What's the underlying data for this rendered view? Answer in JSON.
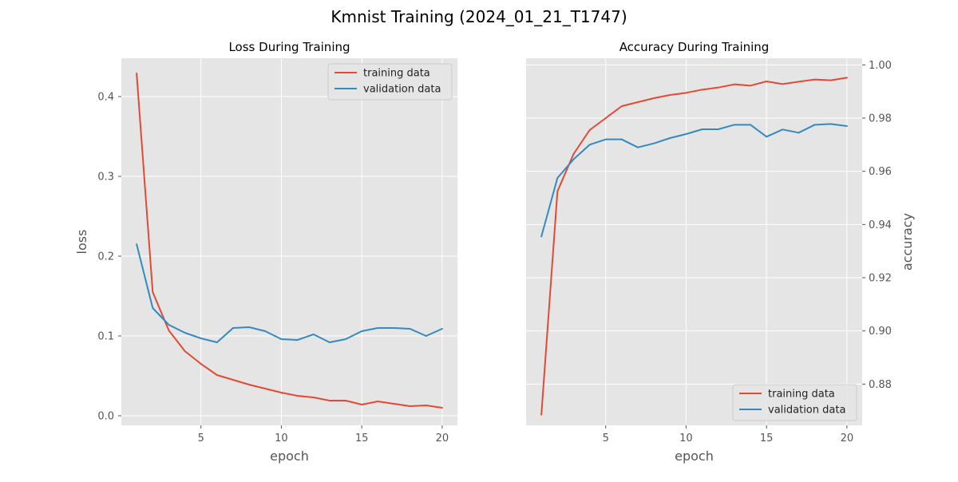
{
  "figure": {
    "suptitle": "Kmnist Training (2024_01_21_T1747)"
  },
  "colors": {
    "background": "#ffffff",
    "axes_bg": "#e5e5e5",
    "grid": "#ffffff",
    "text": "#555555",
    "title": "#000000",
    "training": "#e24a33",
    "validation": "#348abd"
  },
  "chart_data": [
    {
      "type": "line",
      "title": "Loss During Training",
      "xlabel": "epoch",
      "ylabel": "loss",
      "xlim": [
        0.05,
        20.95
      ],
      "ylim": [
        -0.012,
        0.448
      ],
      "xticks": [
        5,
        10,
        15,
        20
      ],
      "xtick_labels": [
        "5",
        "10",
        "15",
        "20"
      ],
      "yticks": [
        0.0,
        0.1,
        0.2,
        0.3,
        0.4
      ],
      "ytick_labels": [
        "0.0",
        "0.1",
        "0.2",
        "0.3",
        "0.4"
      ],
      "ylabel_side": "left",
      "grid": true,
      "legend_position": "upper right",
      "x": [
        1,
        2,
        3,
        4,
        5,
        6,
        7,
        8,
        9,
        10,
        11,
        12,
        13,
        14,
        15,
        16,
        17,
        18,
        19,
        20
      ],
      "series": [
        {
          "name": "training data",
          "color": "#e24a33",
          "values": [
            0.429,
            0.155,
            0.107,
            0.081,
            0.065,
            0.051,
            0.045,
            0.039,
            0.034,
            0.029,
            0.025,
            0.023,
            0.019,
            0.019,
            0.014,
            0.018,
            0.015,
            0.012,
            0.013,
            0.01
          ]
        },
        {
          "name": "validation data",
          "color": "#348abd",
          "values": [
            0.215,
            0.135,
            0.114,
            0.104,
            0.097,
            0.092,
            0.11,
            0.111,
            0.106,
            0.096,
            0.095,
            0.102,
            0.092,
            0.096,
            0.106,
            0.11,
            0.11,
            0.109,
            0.1,
            0.109
          ]
        }
      ]
    },
    {
      "type": "line",
      "title": "Accuracy During Training",
      "xlabel": "epoch",
      "ylabel": "accuracy",
      "xlim": [
        0.05,
        20.95
      ],
      "ylim": [
        0.8645,
        1.0025
      ],
      "xticks": [
        5,
        10,
        15,
        20
      ],
      "xtick_labels": [
        "5",
        "10",
        "15",
        "20"
      ],
      "yticks": [
        0.88,
        0.9,
        0.92,
        0.94,
        0.96,
        0.98,
        1.0
      ],
      "ytick_labels": [
        "0.88",
        "0.90",
        "0.92",
        "0.94",
        "0.96",
        "0.98",
        "1.00"
      ],
      "ylabel_side": "right",
      "grid": true,
      "legend_position": "lower right",
      "x": [
        1,
        2,
        3,
        4,
        5,
        6,
        7,
        8,
        9,
        10,
        11,
        12,
        13,
        14,
        15,
        16,
        17,
        18,
        19,
        20
      ],
      "series": [
        {
          "name": "training data",
          "color": "#e24a33",
          "values": [
            0.8685,
            0.9525,
            0.9665,
            0.9755,
            0.98,
            0.9845,
            0.986,
            0.9875,
            0.9887,
            0.9895,
            0.9907,
            0.9915,
            0.9927,
            0.9922,
            0.9938,
            0.9928,
            0.9937,
            0.9945,
            0.9942,
            0.9952
          ]
        },
        {
          "name": "validation data",
          "color": "#348abd",
          "values": [
            0.9355,
            0.9575,
            0.9645,
            0.97,
            0.972,
            0.972,
            0.969,
            0.9705,
            0.9725,
            0.974,
            0.9758,
            0.9758,
            0.9775,
            0.9775,
            0.973,
            0.9757,
            0.9745,
            0.9775,
            0.9778,
            0.977
          ]
        }
      ]
    }
  ]
}
